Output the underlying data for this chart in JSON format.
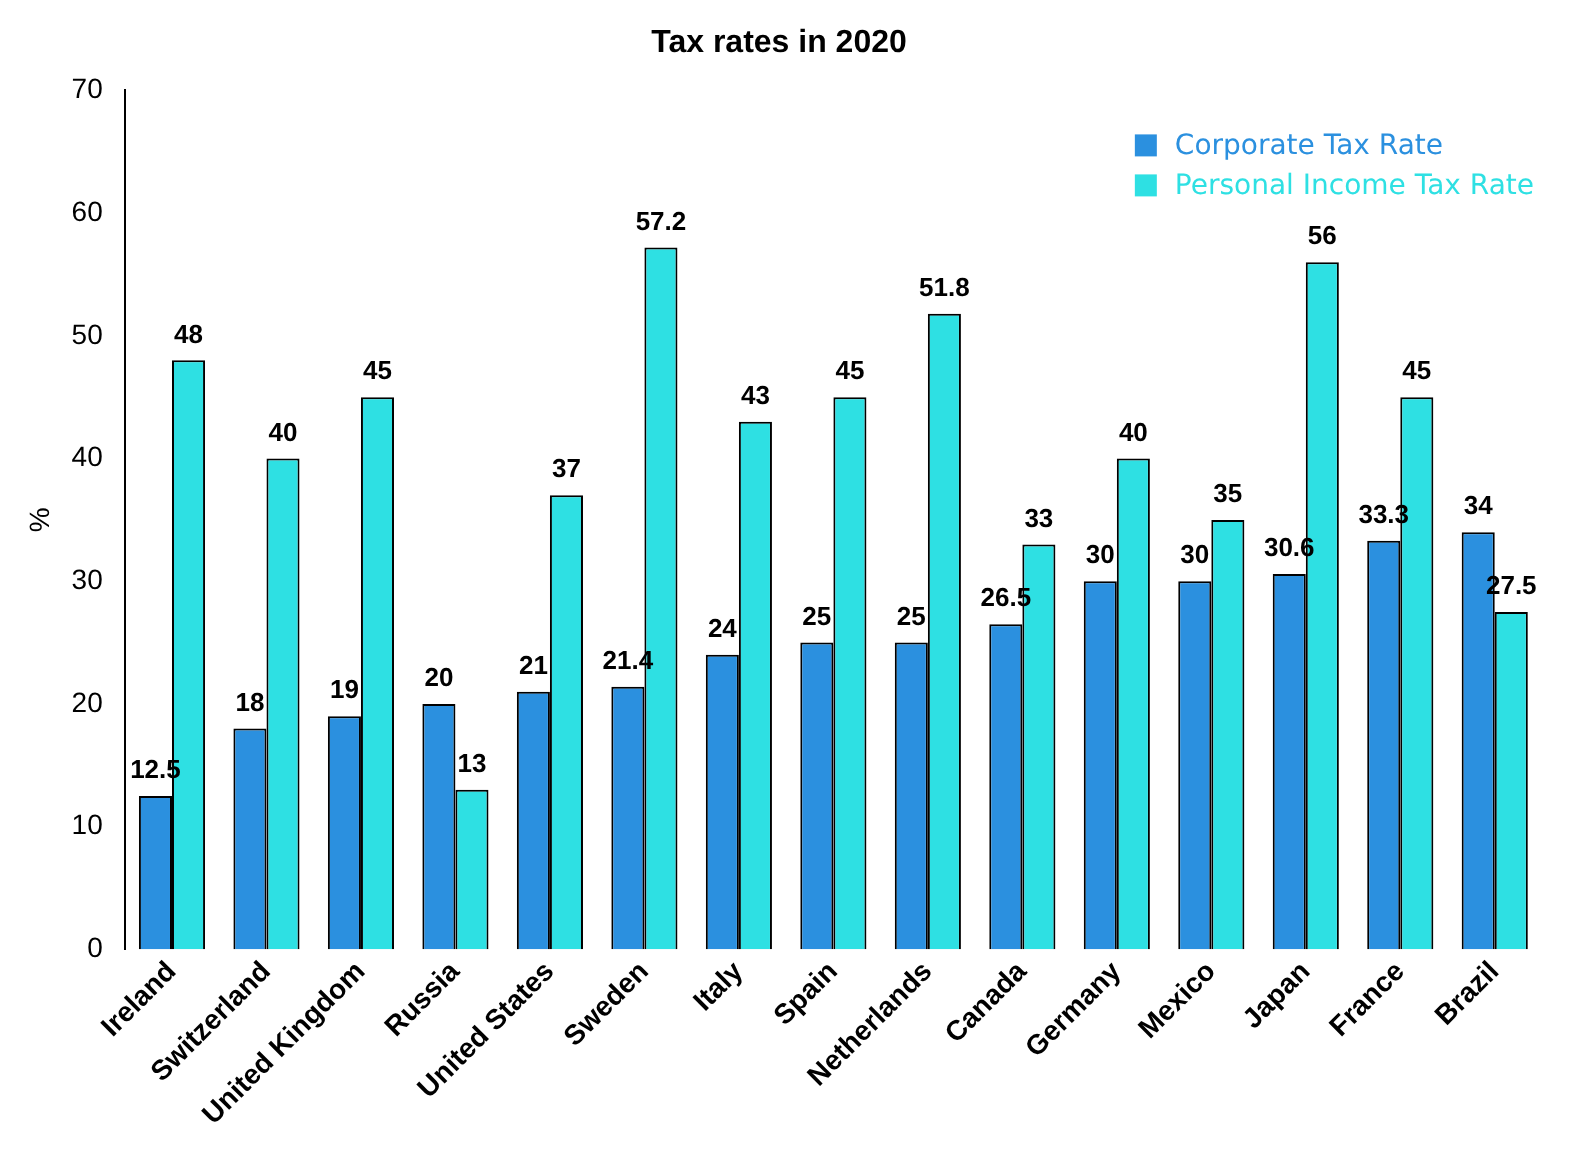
{
  "chart_data": {
    "type": "bar",
    "title": "Tax rates in 2020",
    "ylabel": "%",
    "categories": [
      "Ireland",
      "Switzerland",
      "United Kingdom",
      "Russia",
      "United States",
      "Sweden",
      "Italy",
      "Spain",
      "Netherlands",
      "Canada",
      "Germany",
      "Mexico",
      "Japan",
      "France",
      "Brazil"
    ],
    "series": [
      {
        "name": "Corporate Tax Rate",
        "color": "#2b90df",
        "values": [
          12.5,
          18,
          19,
          20,
          21,
          21.4,
          24,
          25,
          25,
          26.5,
          30,
          30,
          30.6,
          33.3,
          34
        ]
      },
      {
        "name": "Personal Income Tax Rate",
        "color": "#2ee0e3",
        "values": [
          48,
          40,
          45,
          13,
          37,
          57.2,
          43,
          45,
          51.8,
          33,
          40,
          35,
          56,
          45,
          27.5
        ]
      }
    ],
    "ylim": [
      0,
      70
    ],
    "yticks": [
      0,
      10,
      20,
      30,
      40,
      50,
      60,
      70
    ],
    "grid": false,
    "legend": "top right",
    "data_labels": true
  }
}
